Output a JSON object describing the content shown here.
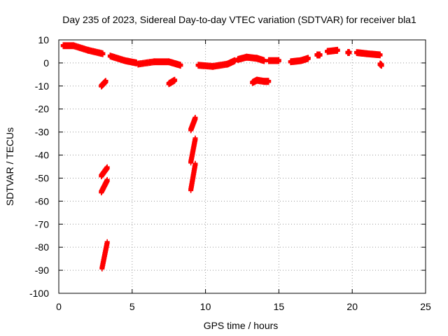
{
  "chart_data": {
    "type": "scatter",
    "title": "Day 235 of 2023, Sidereal Day-to-day VTEC variation (SDTVAR) for receiver bla1",
    "xlabel": "GPS time / hours",
    "ylabel": "SDTVAR / TECUs",
    "xlim": [
      0,
      25
    ],
    "ylim": [
      -100,
      10
    ],
    "xticks": [
      0,
      5,
      10,
      15,
      20,
      25
    ],
    "yticks": [
      10,
      0,
      -10,
      -20,
      -30,
      -40,
      -50,
      -60,
      -70,
      -80,
      -90,
      -100
    ],
    "grid": true,
    "marker": "plus",
    "color": "#ff0000",
    "segments": [
      {
        "x": [
          0.3,
          1.0,
          2.0,
          3.0
        ],
        "y": [
          7.5,
          7.5,
          5.5,
          4.0
        ]
      },
      {
        "x": [
          3.5,
          4.5,
          5.3
        ],
        "y": [
          3.0,
          1.0,
          0.0
        ]
      },
      {
        "x": [
          5.4,
          6.5,
          7.5,
          8.3
        ],
        "y": [
          -0.5,
          0.5,
          0.5,
          -1.0
        ]
      },
      {
        "x": [
          9.5,
          10.5,
          11.5,
          12.0
        ],
        "y": [
          -1.0,
          -1.5,
          -0.5,
          1.0
        ]
      },
      {
        "x": [
          12.2,
          12.8,
          13.5,
          14.0
        ],
        "y": [
          1.5,
          2.5,
          2.0,
          1.0
        ]
      },
      {
        "x": [
          14.3,
          15.0
        ],
        "y": [
          1.0,
          1.0
        ]
      },
      {
        "x": [
          15.8,
          16.5,
          17.0
        ],
        "y": [
          0.5,
          1.0,
          2.0
        ]
      },
      {
        "x": [
          17.6,
          17.8
        ],
        "y": [
          3.5,
          3.5
        ]
      },
      {
        "x": [
          18.3,
          19.0
        ],
        "y": [
          5.0,
          5.5
        ]
      },
      {
        "x": [
          19.7,
          19.8
        ],
        "y": [
          4.5,
          4.5
        ]
      },
      {
        "x": [
          20.3,
          21.0,
          21.9
        ],
        "y": [
          4.5,
          4.0,
          3.5
        ]
      },
      {
        "x": [
          21.9,
          22.0
        ],
        "y": [
          -0.5,
          -1.0
        ]
      },
      {
        "x": [
          2.9,
          3.2
        ],
        "y": [
          -10.0,
          -8.0
        ]
      },
      {
        "x": [
          7.5,
          7.9
        ],
        "y": [
          -9.0,
          -7.5
        ]
      },
      {
        "x": [
          13.2,
          13.5,
          14.0,
          14.3
        ],
        "y": [
          -8.5,
          -7.5,
          -8.0,
          -8.0
        ]
      },
      {
        "x": [
          2.9,
          3.3
        ],
        "y": [
          -49.0,
          -45.5
        ]
      },
      {
        "x": [
          2.9,
          3.3
        ],
        "y": [
          -56.0,
          -51.0
        ]
      },
      {
        "x": [
          2.95,
          3.3
        ],
        "y": [
          -89.0,
          -78.0
        ]
      },
      {
        "x": [
          9.0,
          9.3
        ],
        "y": [
          -29.0,
          -24.0
        ]
      },
      {
        "x": [
          9.0,
          9.3
        ],
        "y": [
          -43.0,
          -33.0
        ]
      },
      {
        "x": [
          9.0,
          9.3
        ],
        "y": [
          -55.0,
          -44.0
        ]
      }
    ]
  }
}
